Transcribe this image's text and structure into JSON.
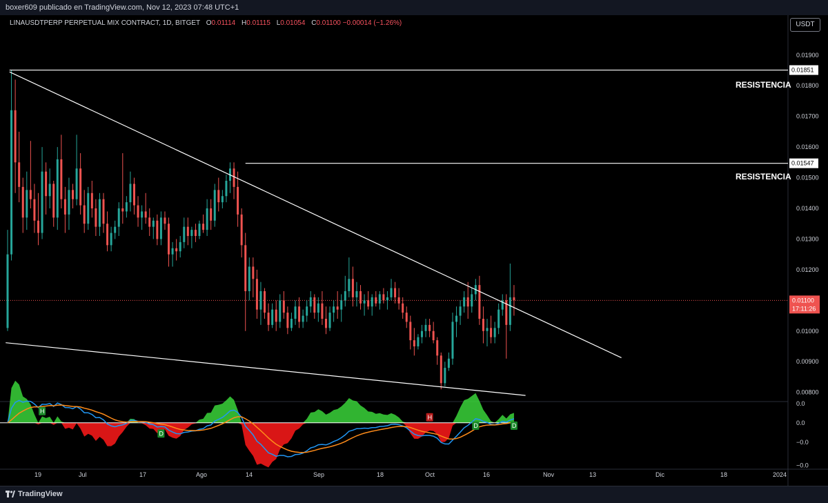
{
  "header": {
    "publisher": "boxer609 publicado en TradingView.com, Nov 12, 2023 07:48 UTC+1"
  },
  "legend": {
    "symbol": "LINAUSDTPERP PERPETUAL MIX CONTRACT, 1D, BITGET",
    "o_label": "O",
    "o_value": "0.01114",
    "h_label": "H",
    "h_value": "0.01115",
    "l_label": "L",
    "l_value": "0.01054",
    "c_label": "C",
    "c_value": "0.01100",
    "change": "−0.00014 (−1.26%)"
  },
  "currency": "USDT",
  "annotations": {
    "resistance1": "RESISTENCIA",
    "resistance2": "RESISTENCIA"
  },
  "footer": {
    "brand": "TradingView"
  },
  "colors": {
    "up": "#26a69a",
    "down": "#ef5350",
    "background": "#000000",
    "line": "#ffffff",
    "macd_pos": "#3ad43a",
    "macd_neg": "#ff1a1a",
    "macd_fast": "#2196f3",
    "macd_slow": "#ff8c1a"
  },
  "chart_data": {
    "type": "candlestick",
    "interval": "1D",
    "ylim": [
      0.0077,
      0.0203
    ],
    "price_ticks": [
      "0.01900",
      "0.01800",
      "0.01700",
      "0.01600",
      "0.01500",
      "0.01400",
      "0.01300",
      "0.01200",
      "0.01000",
      "0.00900",
      "0.00800"
    ],
    "x_ticks": [
      "19",
      "Jul",
      "17",
      "Ago",
      "14",
      "Sep",
      "18",
      "Oct",
      "16",
      "Nov",
      "13",
      "Dic",
      "18",
      "2024"
    ],
    "horizontal_lines": [
      {
        "price": 0.01851,
        "label": "0.01851",
        "annotation": "RESISTENCIA"
      },
      {
        "price": 0.01547,
        "label": "0.01547",
        "annotation": "RESISTENCIA"
      }
    ],
    "trendlines": [
      {
        "from": {
          "day": 0.5,
          "price": 0.01845
        },
        "to": {
          "day": 160,
          "price": 0.00913
        }
      },
      {
        "from": {
          "day": -0.5,
          "price": 0.00962
        },
        "to": {
          "day": 135,
          "price": 0.0079
        }
      }
    ],
    "last_price": {
      "price": 0.011,
      "label": "0.01100",
      "countdown": "17:11:26"
    },
    "candles_ohlc": [
      [
        0.0101,
        0.0133,
        0.01,
        0.0125
      ],
      [
        0.0125,
        0.0185,
        0.0123,
        0.0172
      ],
      [
        0.0172,
        0.0182,
        0.0145,
        0.0155
      ],
      [
        0.0155,
        0.0165,
        0.0142,
        0.0147
      ],
      [
        0.0147,
        0.015,
        0.0132,
        0.0137
      ],
      [
        0.0137,
        0.0152,
        0.0133,
        0.0146
      ],
      [
        0.0146,
        0.0162,
        0.014,
        0.0143
      ],
      [
        0.0143,
        0.0148,
        0.0132,
        0.0136
      ],
      [
        0.0136,
        0.0145,
        0.0128,
        0.0132
      ],
      [
        0.0132,
        0.016,
        0.013,
        0.0152
      ],
      [
        0.0152,
        0.0155,
        0.0138,
        0.0144
      ],
      [
        0.0144,
        0.0153,
        0.014,
        0.0148
      ],
      [
        0.0148,
        0.0149,
        0.0134,
        0.0137
      ],
      [
        0.0137,
        0.016,
        0.0133,
        0.0156
      ],
      [
        0.0156,
        0.0164,
        0.014,
        0.0143
      ],
      [
        0.0143,
        0.0147,
        0.0132,
        0.0138
      ],
      [
        0.0138,
        0.015,
        0.0133,
        0.0146
      ],
      [
        0.0146,
        0.0148,
        0.014,
        0.0143
      ],
      [
        0.0143,
        0.0164,
        0.0141,
        0.0153
      ],
      [
        0.0153,
        0.0158,
        0.0138,
        0.0141
      ],
      [
        0.0141,
        0.0146,
        0.0132,
        0.0135
      ],
      [
        0.0135,
        0.0147,
        0.0133,
        0.0145
      ],
      [
        0.0145,
        0.0149,
        0.0137,
        0.014
      ],
      [
        0.014,
        0.0143,
        0.0131,
        0.0134
      ],
      [
        0.0134,
        0.0145,
        0.0131,
        0.0143
      ],
      [
        0.0143,
        0.0145,
        0.0132,
        0.0135
      ],
      [
        0.0135,
        0.0139,
        0.0126,
        0.0128
      ],
      [
        0.0128,
        0.0134,
        0.0126,
        0.0132
      ],
      [
        0.0132,
        0.0136,
        0.013,
        0.0134
      ],
      [
        0.0134,
        0.0142,
        0.0131,
        0.014
      ],
      [
        0.014,
        0.0158,
        0.0135,
        0.0139
      ],
      [
        0.0139,
        0.0144,
        0.0137,
        0.0142
      ],
      [
        0.0142,
        0.0152,
        0.0139,
        0.0148
      ],
      [
        0.0148,
        0.015,
        0.0138,
        0.0141
      ],
      [
        0.0141,
        0.0144,
        0.0134,
        0.0137
      ],
      [
        0.0137,
        0.0141,
        0.0133,
        0.0139
      ],
      [
        0.0139,
        0.0145,
        0.0135,
        0.0137
      ],
      [
        0.0137,
        0.014,
        0.0131,
        0.0134
      ],
      [
        0.0134,
        0.0137,
        0.013,
        0.0136
      ],
      [
        0.0136,
        0.0138,
        0.0128,
        0.013
      ],
      [
        0.013,
        0.0139,
        0.0128,
        0.0137
      ],
      [
        0.0137,
        0.0139,
        0.0133,
        0.0135
      ],
      [
        0.0135,
        0.0137,
        0.0121,
        0.0125
      ],
      [
        0.0125,
        0.0129,
        0.0121,
        0.0127
      ],
      [
        0.0127,
        0.013,
        0.0123,
        0.0126
      ],
      [
        0.0126,
        0.0131,
        0.0124,
        0.0129
      ],
      [
        0.0129,
        0.0137,
        0.0127,
        0.0134
      ],
      [
        0.0134,
        0.0137,
        0.0128,
        0.0131
      ],
      [
        0.0131,
        0.0134,
        0.0127,
        0.0133
      ],
      [
        0.0133,
        0.0135,
        0.0129,
        0.0131
      ],
      [
        0.0131,
        0.0136,
        0.013,
        0.0135
      ],
      [
        0.0135,
        0.0138,
        0.0132,
        0.0133
      ],
      [
        0.0133,
        0.0143,
        0.0131,
        0.014
      ],
      [
        0.014,
        0.0143,
        0.0133,
        0.0136
      ],
      [
        0.0136,
        0.0148,
        0.0134,
        0.0146
      ],
      [
        0.0146,
        0.015,
        0.0139,
        0.0142
      ],
      [
        0.0142,
        0.0146,
        0.014,
        0.0144
      ],
      [
        0.0144,
        0.0151,
        0.0142,
        0.0149
      ],
      [
        0.0149,
        0.0155,
        0.0145,
        0.0153
      ],
      [
        0.0153,
        0.0155,
        0.0143,
        0.0147
      ],
      [
        0.0147,
        0.0152,
        0.0134,
        0.0138
      ],
      [
        0.0138,
        0.014,
        0.0124,
        0.0128
      ],
      [
        0.0128,
        0.0132,
        0.01,
        0.0113
      ],
      [
        0.0113,
        0.0124,
        0.011,
        0.0121
      ],
      [
        0.0121,
        0.0124,
        0.0111,
        0.0117
      ],
      [
        0.0117,
        0.012,
        0.0104,
        0.0107
      ],
      [
        0.0107,
        0.0116,
        0.0102,
        0.0113
      ],
      [
        0.0113,
        0.0114,
        0.0104,
        0.0106
      ],
      [
        0.0106,
        0.0109,
        0.01,
        0.0102
      ],
      [
        0.0102,
        0.0109,
        0.0101,
        0.0107
      ],
      [
        0.0107,
        0.011,
        0.01,
        0.0103
      ],
      [
        0.0103,
        0.0112,
        0.0101,
        0.011
      ],
      [
        0.011,
        0.0113,
        0.0104,
        0.0106
      ],
      [
        0.0106,
        0.0108,
        0.0099,
        0.0101
      ],
      [
        0.0101,
        0.0106,
        0.01,
        0.0104
      ],
      [
        0.0104,
        0.011,
        0.0102,
        0.0108
      ],
      [
        0.0108,
        0.0111,
        0.0101,
        0.0103
      ],
      [
        0.0103,
        0.0107,
        0.0101,
        0.0105
      ],
      [
        0.0105,
        0.011,
        0.0103,
        0.0108
      ],
      [
        0.0108,
        0.0113,
        0.0106,
        0.0111
      ],
      [
        0.0111,
        0.0112,
        0.0104,
        0.0106
      ],
      [
        0.0106,
        0.0111,
        0.0103,
        0.0109
      ],
      [
        0.0109,
        0.0113,
        0.0102,
        0.0104
      ],
      [
        0.0104,
        0.0108,
        0.0099,
        0.0101
      ],
      [
        0.0101,
        0.0108,
        0.01,
        0.0106
      ],
      [
        0.0106,
        0.011,
        0.0103,
        0.0108
      ],
      [
        0.0108,
        0.0113,
        0.0104,
        0.0107
      ],
      [
        0.0107,
        0.0112,
        0.0103,
        0.011
      ],
      [
        0.011,
        0.0118,
        0.0108,
        0.0113
      ],
      [
        0.0113,
        0.0124,
        0.0111,
        0.0117
      ],
      [
        0.0117,
        0.0121,
        0.0108,
        0.0111
      ],
      [
        0.0111,
        0.0116,
        0.0108,
        0.0113
      ],
      [
        0.0113,
        0.0115,
        0.0107,
        0.0109
      ],
      [
        0.0109,
        0.0112,
        0.0105,
        0.011
      ],
      [
        0.011,
        0.0113,
        0.0107,
        0.0108
      ],
      [
        0.0108,
        0.0112,
        0.0105,
        0.0111
      ],
      [
        0.0111,
        0.0113,
        0.0108,
        0.0109
      ],
      [
        0.0109,
        0.0113,
        0.0107,
        0.0112
      ],
      [
        0.0112,
        0.0114,
        0.0109,
        0.011
      ],
      [
        0.011,
        0.0113,
        0.0107,
        0.0111
      ],
      [
        0.0111,
        0.0117,
        0.011,
        0.0114
      ],
      [
        0.0114,
        0.0116,
        0.0109,
        0.0111
      ],
      [
        0.0111,
        0.0114,
        0.0107,
        0.0109
      ],
      [
        0.0109,
        0.0111,
        0.0104,
        0.0106
      ],
      [
        0.0106,
        0.0108,
        0.0101,
        0.0103
      ],
      [
        0.0103,
        0.0105,
        0.0094,
        0.0097
      ],
      [
        0.0097,
        0.0101,
        0.0092,
        0.0095
      ],
      [
        0.0095,
        0.0099,
        0.0094,
        0.0098
      ],
      [
        0.0098,
        0.0102,
        0.0096,
        0.01
      ],
      [
        0.01,
        0.0104,
        0.0098,
        0.0102
      ],
      [
        0.0102,
        0.0104,
        0.0098,
        0.01
      ],
      [
        0.01,
        0.0103,
        0.0096,
        0.0097
      ],
      [
        0.0097,
        0.0098,
        0.0089,
        0.0092
      ],
      [
        0.0092,
        0.0093,
        0.0081,
        0.0083
      ],
      [
        0.0083,
        0.009,
        0.0082,
        0.0088
      ],
      [
        0.0088,
        0.0093,
        0.0087,
        0.0091
      ],
      [
        0.0091,
        0.0106,
        0.0089,
        0.0103
      ],
      [
        0.0103,
        0.0108,
        0.0098,
        0.0105
      ],
      [
        0.0105,
        0.011,
        0.0102,
        0.0108
      ],
      [
        0.0108,
        0.0113,
        0.0106,
        0.0111
      ],
      [
        0.0111,
        0.0116,
        0.0104,
        0.0108
      ],
      [
        0.0108,
        0.0114,
        0.0106,
        0.0112
      ],
      [
        0.0112,
        0.0117,
        0.011,
        0.0115
      ],
      [
        0.0115,
        0.0118,
        0.0102,
        0.0104
      ],
      [
        0.0104,
        0.0108,
        0.0096,
        0.01
      ],
      [
        0.01,
        0.0104,
        0.0095,
        0.0101
      ],
      [
        0.0101,
        0.0105,
        0.0096,
        0.0098
      ],
      [
        0.0098,
        0.0103,
        0.0096,
        0.0101
      ],
      [
        0.0101,
        0.0109,
        0.0099,
        0.0107
      ],
      [
        0.0107,
        0.0112,
        0.0105,
        0.011
      ],
      [
        0.011,
        0.0112,
        0.0091,
        0.0102
      ],
      [
        0.0102,
        0.0122,
        0.01,
        0.0111
      ],
      [
        0.0111,
        0.0115,
        0.0105,
        0.011
      ]
    ],
    "macd_panel": {
      "ylim": [
        -0.0012,
        0.00055
      ],
      "tick_labels": [
        "0.0",
        "0.0",
        "−0.0",
        "−0.0"
      ],
      "signal_markers": [
        "H",
        "D",
        "H",
        "D",
        "D"
      ]
    }
  }
}
